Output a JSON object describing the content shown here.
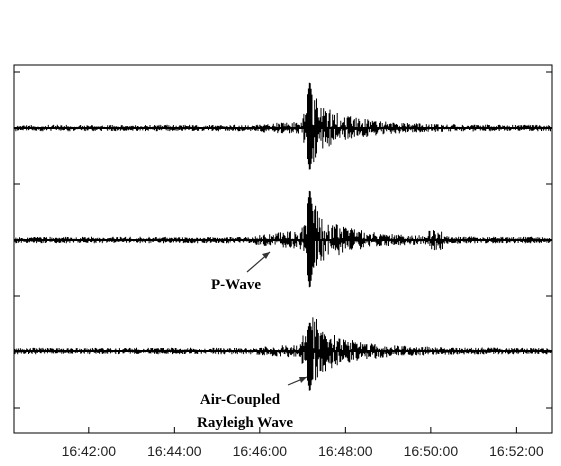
{
  "chart_data": {
    "type": "line",
    "title": "",
    "xlabel": "",
    "ylabel": "",
    "grid": false,
    "legend": "none",
    "x_ticks": [
      "16:42:00",
      "16:44:00",
      "16:46:00",
      "16:48:00",
      "16:50:00",
      "16:52:00"
    ],
    "x_range": [
      "16:40:15",
      "16:52:50"
    ],
    "series": [
      {
        "description": "top seismogram trace",
        "arrival_time": "16:47:10"
      },
      {
        "description": "middle seismogram trace",
        "arrival_time": "16:47:10"
      },
      {
        "description": "bottom seismogram trace",
        "arrival_time": "16:47:10"
      }
    ],
    "annotations": [
      {
        "text": "P-Wave",
        "points_to_time": "16:46:25",
        "trace": 2
      },
      {
        "text": "Air-Coupled",
        "points_to_time": "16:47:05",
        "trace": 3
      },
      {
        "text": "Rayleigh Wave",
        "points_to_time": "16:47:05",
        "trace": 3
      }
    ],
    "colors": {
      "trace": "#000000",
      "frame": "#000000",
      "background": "#ffffff"
    }
  }
}
